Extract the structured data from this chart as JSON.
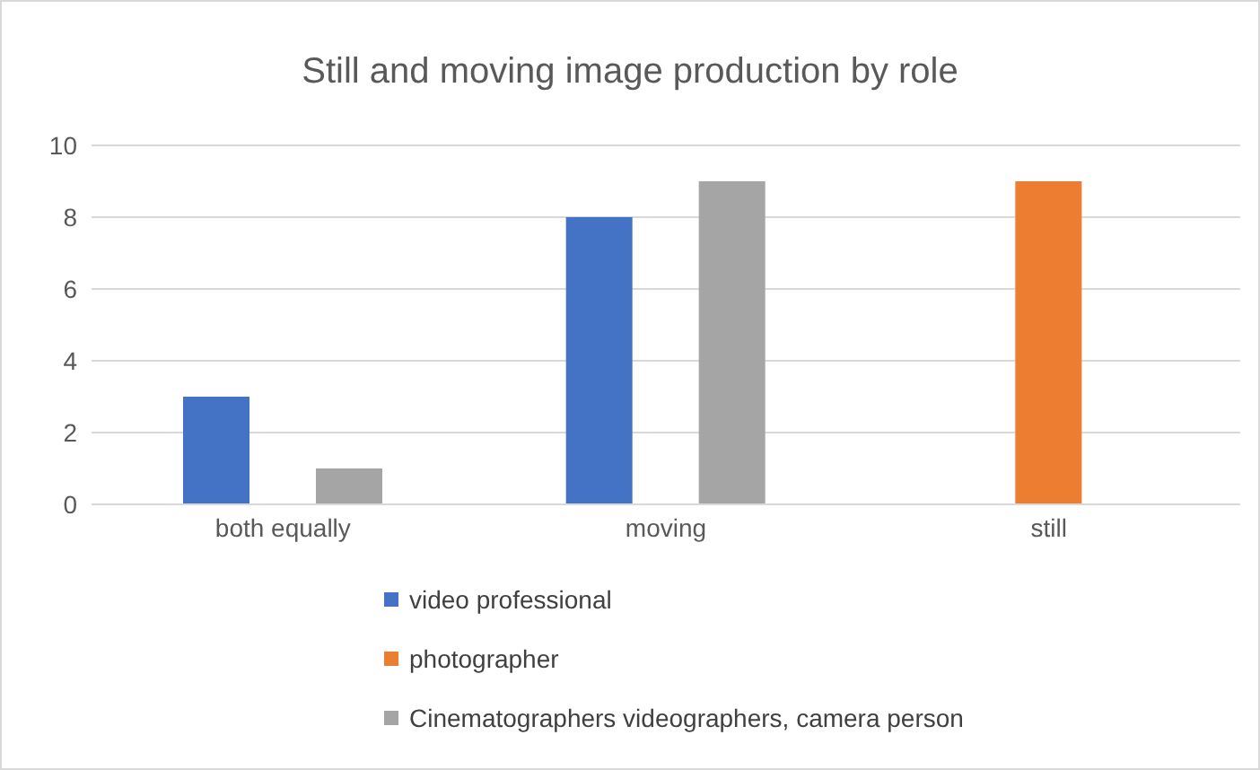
{
  "chart_data": {
    "type": "bar",
    "title": "Still and moving image production by role",
    "categories": [
      "both equally",
      "moving",
      "still"
    ],
    "series": [
      {
        "name": "video professional",
        "color": "#4472c4",
        "values": [
          3,
          8,
          null
        ]
      },
      {
        "name": "photographer",
        "color": "#ed7d31",
        "values": [
          null,
          null,
          9
        ]
      },
      {
        "name": "Cinematographers videographers, camera person",
        "color": "#a5a5a5",
        "values": [
          1,
          9,
          null
        ]
      }
    ],
    "ylim": [
      0,
      10
    ],
    "yticks": [
      0,
      2,
      4,
      6,
      8,
      10
    ],
    "grid": "y",
    "legend": "bottom"
  }
}
